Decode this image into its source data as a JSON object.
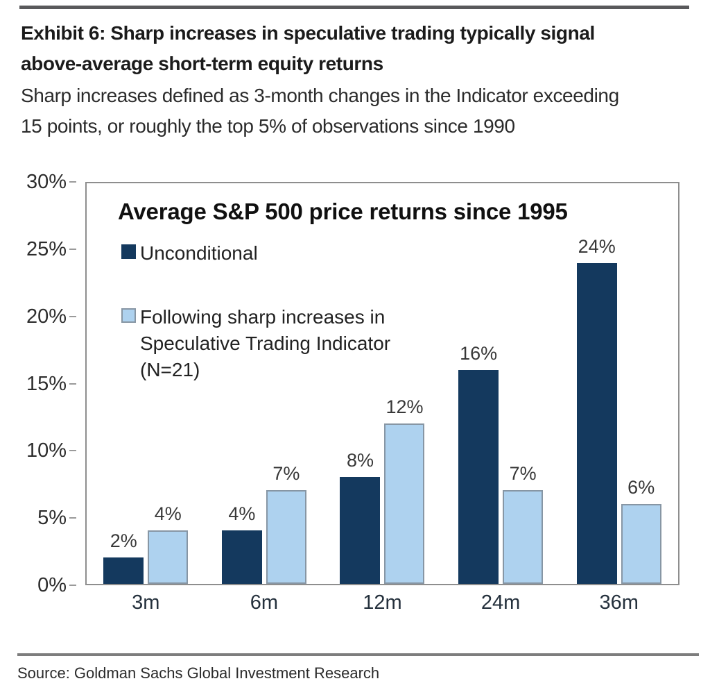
{
  "header": {
    "title": "Exhibit 6: Sharp increases in speculative trading typically signal\nabove-average short-term equity returns",
    "subtitle": "Sharp increases defined as 3-month changes in the Indicator exceeding\n15 points, or roughly the top 5% of observations since 1990"
  },
  "chart_data": {
    "type": "bar",
    "title": "Average S&P 500 price returns since 1995",
    "categories": [
      "3m",
      "6m",
      "12m",
      "24m",
      "36m"
    ],
    "series": [
      {
        "name": "Unconditional",
        "color": "#14395E",
        "values": [
          2,
          4,
          8,
          16,
          24
        ]
      },
      {
        "name": "Following sharp increases in Speculative Trading Indicator (N=21)",
        "color": "#AED2EF",
        "border_color": "#8796A4",
        "values": [
          4,
          7,
          12,
          7,
          6
        ]
      }
    ],
    "legend": [
      "Unconditional",
      "Following sharp increases in\nSpeculative Trading Indicator\n(N=21)"
    ],
    "legend_position": "inside-top-left",
    "ylim": [
      0,
      30
    ],
    "ytick_step": 5,
    "yticks": [
      "0%",
      "5%",
      "10%",
      "15%",
      "20%",
      "25%",
      "30%"
    ],
    "bar_label_suffix": "%",
    "grid": false
  },
  "footer": {
    "source": "Source: Goldman Sachs Global Investment Research"
  },
  "colors": {
    "rule_top": "#59595b",
    "rule_bottom": "#7d7d7d",
    "plot_border": "#8e8e8e"
  }
}
